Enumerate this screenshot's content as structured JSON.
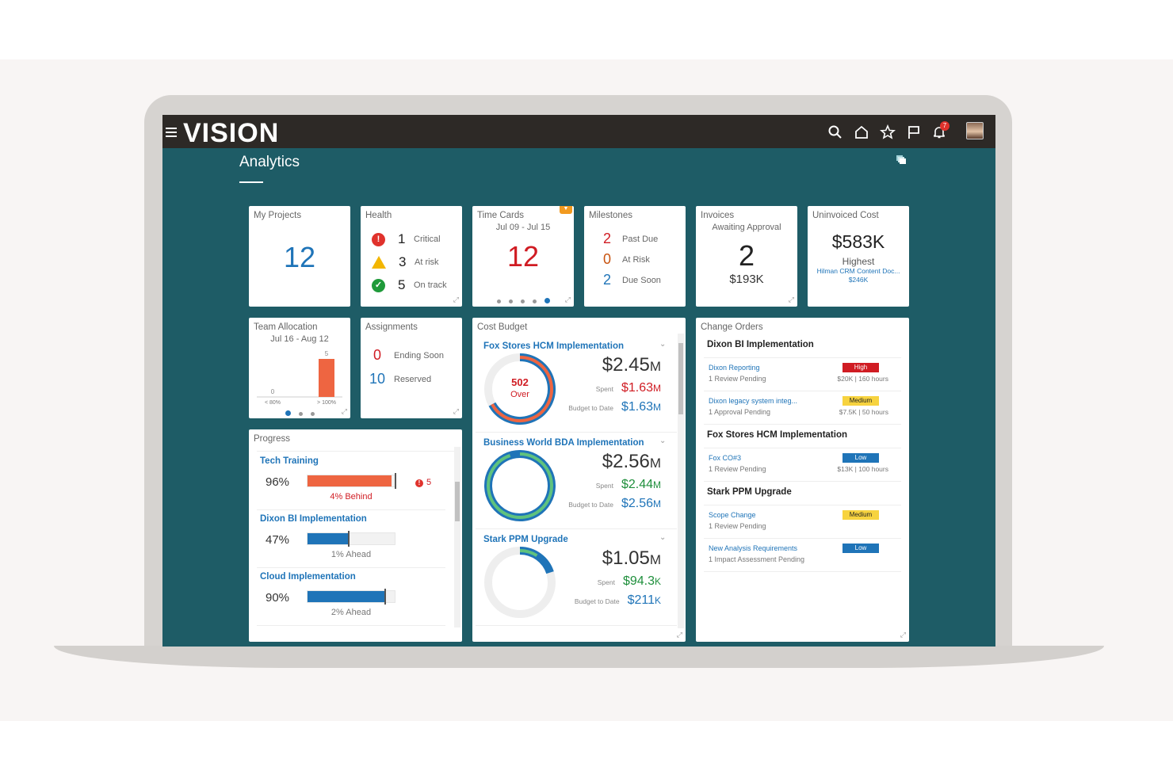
{
  "app": {
    "logo": "VISION",
    "page_title": "Analytics",
    "notification_count": "7",
    "icons": [
      "menu-icon",
      "search-icon",
      "home-icon",
      "star-icon",
      "flag-icon",
      "bell-icon",
      "avatar",
      "springboard-icon"
    ]
  },
  "my_projects": {
    "title": "My Projects",
    "value": "12"
  },
  "health": {
    "title": "Health",
    "items": [
      {
        "count": "1",
        "label": "Critical",
        "icon": "error-icon",
        "color": "#e0322c"
      },
      {
        "count": "3",
        "label": "At risk",
        "icon": "warning-icon",
        "color": "#f3b600"
      },
      {
        "count": "5",
        "label": "On track",
        "icon": "check-icon",
        "color": "#1f9a3a"
      }
    ]
  },
  "time_cards": {
    "title": "Time Cards",
    "range": "Jul 09 - Jul 15",
    "value": "12",
    "pages": 5,
    "active_page": 5
  },
  "milestones": {
    "title": "Milestones",
    "items": [
      {
        "count": "2",
        "label": "Past Due"
      },
      {
        "count": "0",
        "label": "At Risk"
      },
      {
        "count": "2",
        "label": "Due Soon"
      }
    ]
  },
  "invoices": {
    "title": "Invoices",
    "subtitle": "Awaiting Approval",
    "value": "2",
    "amount": "$193K"
  },
  "uninvoiced": {
    "title": "Uninvoiced Cost",
    "value": "$583K",
    "highest_label": "Highest",
    "highest_name": "Hilman CRM Content Doc...",
    "highest_amount": "$246K"
  },
  "team_allocation": {
    "title": "Team Allocation",
    "range": "Jul 16 - Aug 12",
    "chart_data": {
      "type": "bar",
      "categories": [
        "< 80%",
        "> 100%"
      ],
      "values": [
        0,
        5
      ],
      "data_labels": [
        "0",
        "5"
      ],
      "color": "#ee6541"
    },
    "pages": 3,
    "active_page": 1
  },
  "assignments": {
    "title": "Assignments",
    "items": [
      {
        "count": "0",
        "label": "Ending Soon"
      },
      {
        "count": "10",
        "label": "Reserved"
      }
    ]
  },
  "cost_budget": {
    "title": "Cost Budget",
    "projects": [
      {
        "name": "Fox Stores HCM Implementation",
        "total": "$2.45",
        "total_unit": "M",
        "spent_label": "Spent",
        "spent": "$1.63",
        "spent_unit": "M",
        "btd_label": "Budget to Date",
        "btd": "$1.63",
        "btd_unit": "M",
        "center_value": "502",
        "center_label": "Over",
        "budget_fraction": 0.67,
        "spent_fraction": 0.67,
        "spent_color": "#ee6541"
      },
      {
        "name": "Business World BDA Implementation",
        "total": "$2.56",
        "total_unit": "M",
        "spent_label": "Spent",
        "spent": "$2.44",
        "spent_unit": "M",
        "btd_label": "Budget to Date",
        "btd": "$2.56",
        "btd_unit": "M",
        "budget_fraction": 1.0,
        "spent_fraction": 0.95,
        "spent_color": "#5fc27e"
      },
      {
        "name": "Stark PPM Upgrade",
        "total": "$1.05",
        "total_unit": "M",
        "spent_label": "Spent",
        "spent": "$94.3",
        "spent_unit": "K",
        "btd_label": "Budget to Date",
        "btd": "$211",
        "btd_unit": "K",
        "budget_fraction": 0.2,
        "spent_fraction": 0.09,
        "spent_color": "#5fc27e"
      }
    ]
  },
  "progress": {
    "title": "Progress",
    "items": [
      {
        "name": "Tech Training",
        "percent": "96%",
        "value": 96,
        "target": 100,
        "status": "4% Behind",
        "alert_count": "5",
        "color": "#ee6541"
      },
      {
        "name": "Dixon BI Implementation",
        "percent": "47%",
        "value": 47,
        "target": 46,
        "status": "1%  Ahead",
        "color": "#1f74b8"
      },
      {
        "name": "Cloud Implementation",
        "percent": "90%",
        "value": 90,
        "target": 88,
        "status": "2%  Ahead",
        "color": "#1f74b8"
      }
    ]
  },
  "change_orders": {
    "title": "Change Orders",
    "groups": [
      {
        "name": "Dixon BI Implementation",
        "items": [
          {
            "name": "Dixon Reporting",
            "sub": "1 Review Pending",
            "priority": "High",
            "cost": "$20K | 160 hours"
          },
          {
            "name": "Dixon legacy system integ...",
            "sub": "1 Approval Pending",
            "priority": "Medium",
            "cost": "$7.5K | 50 hours"
          }
        ]
      },
      {
        "name": "Fox Stores HCM Implementation",
        "items": [
          {
            "name": "Fox CO#3",
            "sub": "1 Review Pending",
            "priority": "Low",
            "cost": "$13K | 100 hours"
          }
        ]
      },
      {
        "name": "Stark PPM Upgrade",
        "items": [
          {
            "name": "Scope Change",
            "sub": "1 Review Pending",
            "priority": "Medium"
          },
          {
            "name": "New Analysis Requirements",
            "sub": "1 Impact Assessment Pending",
            "priority": "Low"
          }
        ]
      }
    ],
    "priority_colors": {
      "High": "#d01c23",
      "Medium": "#f7d33f",
      "Low": "#1f74b8"
    }
  }
}
